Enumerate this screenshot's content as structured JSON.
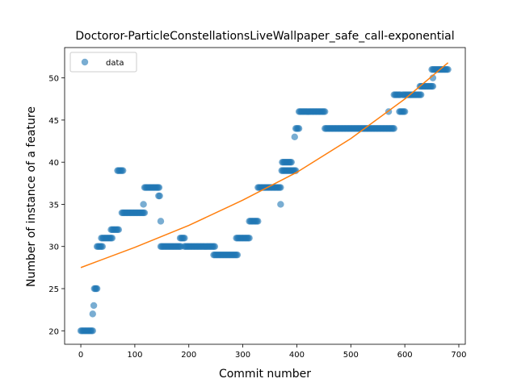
{
  "chart_data": {
    "type": "scatter",
    "title": "Doctoror-ParticleConstellationsLiveWallpaper_safe_call-exponential",
    "xlabel": "Commit number",
    "ylabel": "Number of instance of a feature",
    "xlim": [
      -30,
      712
    ],
    "ylim": [
      18.4,
      53.6
    ],
    "xticks": [
      0,
      100,
      200,
      300,
      400,
      500,
      600,
      700
    ],
    "yticks": [
      20,
      25,
      30,
      35,
      40,
      45,
      50
    ],
    "grid": false,
    "legend": {
      "position": "top-left",
      "entries": [
        "data"
      ]
    },
    "colors": {
      "points": "#1f77b4",
      "fit": "#ff7f0e"
    },
    "series": [
      {
        "name": "data",
        "kind": "points",
        "segments": [
          {
            "x": [
              0,
              22
            ],
            "y": 20
          },
          {
            "x": [
              22,
              22
            ],
            "y": 22
          },
          {
            "x": [
              24,
              24
            ],
            "y": 23
          },
          {
            "x": [
              25,
              30
            ],
            "y": 25
          },
          {
            "x": [
              30,
              40
            ],
            "y": 30
          },
          {
            "x": [
              38,
              58
            ],
            "y": 31
          },
          {
            "x": [
              56,
              70
            ],
            "y": 32
          },
          {
            "x": [
              68,
              78
            ],
            "y": 39
          },
          {
            "x": [
              76,
              118
            ],
            "y": 34
          },
          {
            "x": [
              116,
              116
            ],
            "y": 35
          },
          {
            "x": [
              118,
              145
            ],
            "y": 37
          },
          {
            "x": [
              144,
              146
            ],
            "y": 36
          },
          {
            "x": [
              148,
              148
            ],
            "y": 33
          },
          {
            "x": [
              148,
              185
            ],
            "y": 30
          },
          {
            "x": [
              184,
              192
            ],
            "y": 31
          },
          {
            "x": [
              192,
              248
            ],
            "y": 30
          },
          {
            "x": [
              246,
              290
            ],
            "y": 29
          },
          {
            "x": [
              288,
              312
            ],
            "y": 31
          },
          {
            "x": [
              312,
              328
            ],
            "y": 33
          },
          {
            "x": [
              328,
              370
            ],
            "y": 37
          },
          {
            "x": [
              370,
              370
            ],
            "y": 35
          },
          {
            "x": [
              372,
              398
            ],
            "y": 39
          },
          {
            "x": [
              373,
              390
            ],
            "y": 40
          },
          {
            "x": [
              396,
              396
            ],
            "y": 43
          },
          {
            "x": [
              398,
              404
            ],
            "y": 44
          },
          {
            "x": [
              404,
              452
            ],
            "y": 46
          },
          {
            "x": [
              452,
              580
            ],
            "y": 44
          },
          {
            "x": [
              570,
              570
            ],
            "y": 46
          },
          {
            "x": [
              580,
              592
            ],
            "y": 48
          },
          {
            "x": [
              590,
              600
            ],
            "y": 46
          },
          {
            "x": [
              596,
              630
            ],
            "y": 48
          },
          {
            "x": [
              628,
              652
            ],
            "y": 49
          },
          {
            "x": [
              652,
              652
            ],
            "y": 50
          },
          {
            "x": [
              650,
              680
            ],
            "y": 51
          }
        ]
      },
      {
        "name": "",
        "kind": "fit",
        "model": "exponential",
        "x": [
          0,
          100,
          200,
          300,
          400,
          500,
          600,
          680
        ],
        "y": [
          27.5,
          29.9,
          32.5,
          35.5,
          38.8,
          42.8,
          47.5,
          51.8
        ]
      }
    ]
  }
}
